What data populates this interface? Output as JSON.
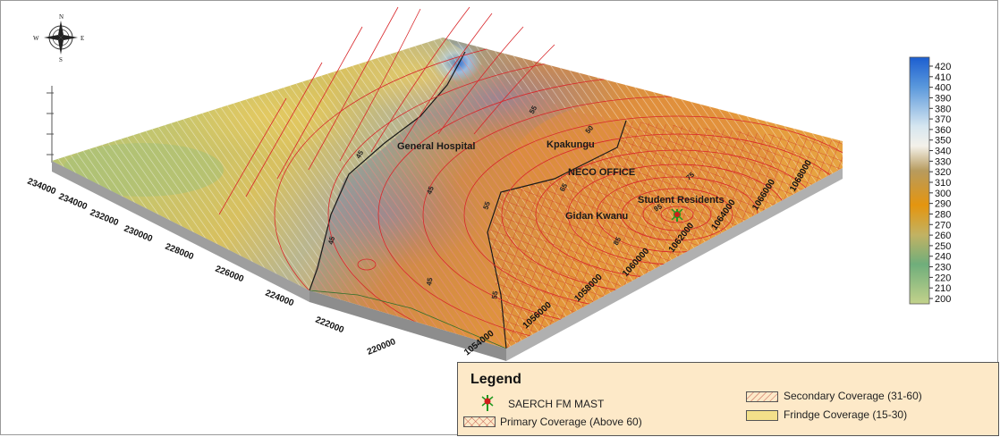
{
  "compass": {
    "north": "N",
    "south": "S",
    "east": "E",
    "west": "W"
  },
  "place_labels": [
    {
      "id": "general-hospital",
      "text": "General Hospital"
    },
    {
      "id": "kpakungu",
      "text": "Kpakungu"
    },
    {
      "id": "neco-office",
      "text": "NECO OFFICE"
    },
    {
      "id": "student-residents",
      "text": "Student Residents"
    },
    {
      "id": "gidan-kwanu",
      "text": "Gidan Kwanu"
    }
  ],
  "y_axis_ticks": [
    "234000",
    "234000",
    "232000",
    "230000",
    "228000",
    "226000",
    "224000",
    "222000",
    "220000"
  ],
  "x_axis_ticks": [
    "1054000",
    "1056000",
    "1058000",
    "1060000",
    "1062000",
    "1064000",
    "1066000",
    "1068000"
  ],
  "contour_labels": [
    "45",
    "45",
    "45",
    "45",
    "55",
    "55",
    "55",
    "50",
    "65",
    "75",
    "85",
    "95"
  ],
  "colorbar": {
    "ticks": [
      "420",
      "410",
      "400",
      "390",
      "380",
      "370",
      "360",
      "350",
      "340",
      "330",
      "320",
      "310",
      "300",
      "290",
      "280",
      "270",
      "260",
      "250",
      "240",
      "230",
      "220",
      "210",
      "200"
    ],
    "min": 200,
    "max": 420
  },
  "legend": {
    "title": "Legend",
    "mast": "SAERCH FM MAST",
    "primary": "Primary Coverage  (Above 60)",
    "secondary": "Secondary Coverage (31-60)",
    "fringe": "Frindge Coverage (15-30)"
  },
  "colors": {
    "fringe": "#f3e08a",
    "secondary_hatch": "#c8352a",
    "primary_hatch": "#d0342a",
    "terrain_low": "#8fb56e",
    "terrain_mid": "#d4a73a",
    "terrain_high": "#2a6fd0",
    "legend_bg": "#fde9c8"
  }
}
